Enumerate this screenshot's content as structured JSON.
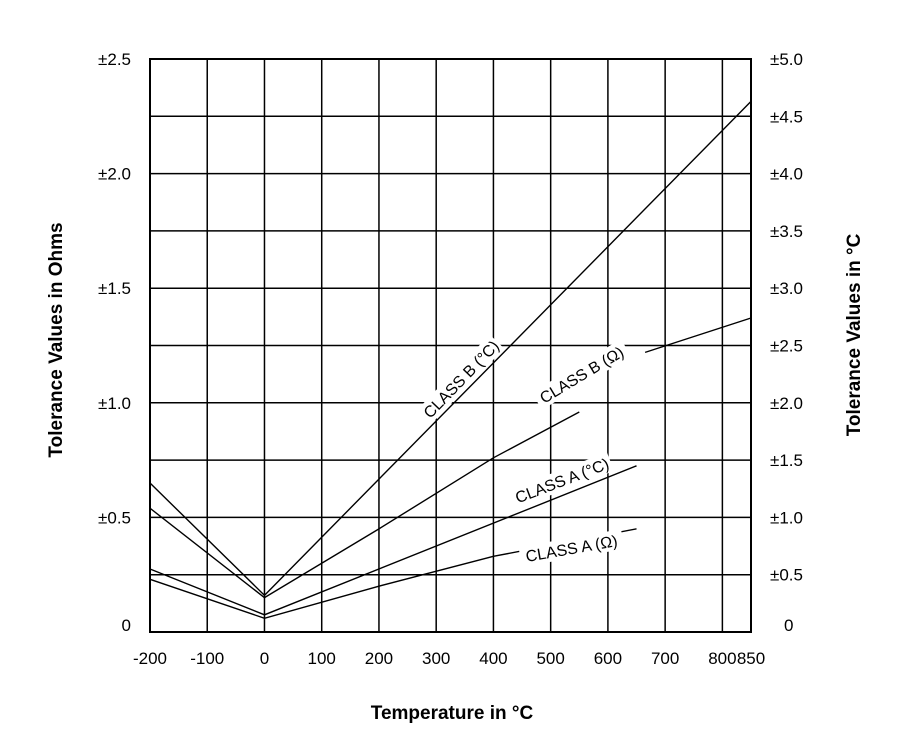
{
  "chart_data": {
    "type": "line",
    "xlabel": "Temperature in °C",
    "ylabel_left": "Tolerance Values in Ohms",
    "ylabel_right": "Tolerance Values in °C",
    "xlim": [
      -200,
      850
    ],
    "ylim_left": [
      0,
      2.5
    ],
    "ylim_right": [
      0,
      5.0
    ],
    "grid": true,
    "x_ticks": [
      "-200",
      "-100",
      "0",
      "100",
      "200",
      "300",
      "400",
      "500",
      "600",
      "700",
      "800",
      "850"
    ],
    "x_tick_values": [
      -200,
      -100,
      0,
      100,
      200,
      300,
      400,
      500,
      600,
      700,
      800,
      850
    ],
    "left_ticks": [
      "0",
      "±0.5",
      "±1.0",
      "±1.5",
      "±2.0",
      "±2.5"
    ],
    "left_tick_values": [
      0,
      0.5,
      1.0,
      1.5,
      2.0,
      2.5
    ],
    "right_ticks": [
      "0",
      "±0.5",
      "±1.0",
      "±1.5",
      "±2.0",
      "±2.5",
      "±3.0",
      "±3.5",
      "±4.0",
      "±4.5",
      "±5.0"
    ],
    "right_tick_values": [
      0,
      0.5,
      1.0,
      1.5,
      2.0,
      2.5,
      3.0,
      3.5,
      4.0,
      4.5,
      5.0
    ],
    "series": [
      {
        "name": "CLASS B (°C)",
        "axis": "right",
        "segments": [
          [
            [
              -200,
              1.3
            ],
            [
              0,
              0.32
            ],
            [
              850,
              4.63
            ]
          ]
        ]
      },
      {
        "name": "CLASS B (Ω)",
        "axis": "left",
        "segments": [
          [
            [
              -200,
              0.54
            ],
            [
              0,
              0.15
            ],
            [
              200,
              0.45
            ],
            [
              400,
              0.76
            ],
            [
              550,
              0.96
            ]
          ],
          [
            [
              665,
              1.22
            ],
            [
              850,
              1.37
            ]
          ]
        ]
      },
      {
        "name": "CLASS A (°C)",
        "axis": "right",
        "segments": [
          [
            [
              -200,
              0.55
            ],
            [
              0,
              0.15
            ],
            [
              650,
              1.45
            ]
          ]
        ]
      },
      {
        "name": "CLASS A (Ω)",
        "axis": "left",
        "segments": [
          [
            [
              -200,
              0.23
            ],
            [
              0,
              0.06
            ],
            [
              200,
              0.2
            ],
            [
              400,
              0.33
            ],
            [
              650,
              0.45
            ]
          ]
        ]
      }
    ]
  }
}
